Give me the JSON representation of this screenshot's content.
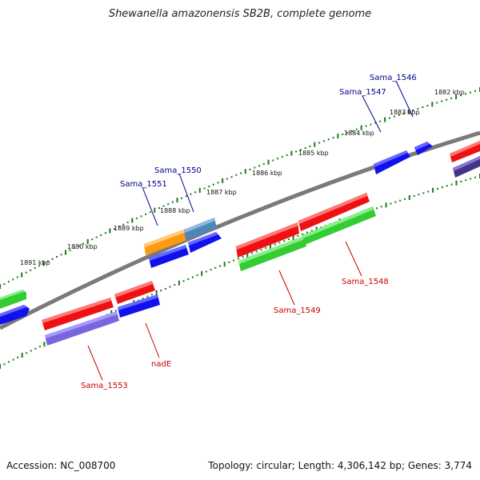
{
  "title": "Shewanella amazonensis SB2B, complete genome",
  "footer": {
    "accession": "Accession: NC_008700",
    "summary": "Topology: circular; Length: 4,306,142 bp; Genes: 3,774"
  },
  "scale_labels": [
    "1882 kbp",
    "1883 kbp",
    "1884 kbp",
    "1885 kbp",
    "1886 kbp",
    "1887 kbp",
    "1888 kbp",
    "1889 kbp",
    "1890 kbp",
    "1891 kbp"
  ],
  "gene_labels": [
    {
      "text": "Sama_1546",
      "color": "#00008b"
    },
    {
      "text": "Sama_1547",
      "color": "#00008b"
    },
    {
      "text": "Sama_1550",
      "color": "#00008b"
    },
    {
      "text": "Sama_1551",
      "color": "#00008b"
    },
    {
      "text": "Sama_1548",
      "color": "#cc0000"
    },
    {
      "text": "Sama_1549",
      "color": "#cc0000"
    },
    {
      "text": "nadE",
      "color": "#cc0000"
    },
    {
      "text": "Sama_1553",
      "color": "#cc0000"
    }
  ],
  "colors": {
    "backbone": "#7a7a7a",
    "scale": "#1a7a1a",
    "red": "#ee1111",
    "green": "#33cc33",
    "blue": "#1111ee",
    "purple": "#7766dd",
    "orange": "#ff9911",
    "steel": "#4f86b8",
    "navy": "#443388"
  }
}
